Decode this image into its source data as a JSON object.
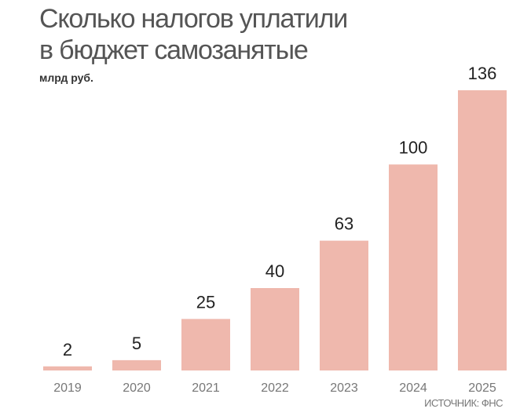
{
  "chart_data": {
    "type": "bar",
    "title": "Сколько налогов уплатили в бюджет самозанятые",
    "title_lines": [
      "Сколько налогов уплатили",
      "в бюджет самозанятые"
    ],
    "unit": "млрд руб.",
    "categories": [
      "2019",
      "2020",
      "2021",
      "2022",
      "2023",
      "2024",
      "2025"
    ],
    "values": [
      2,
      5,
      25,
      40,
      63,
      100,
      136
    ],
    "data_labels": [
      "2",
      "5",
      "25",
      "40",
      "63",
      "100",
      "136"
    ],
    "source": "ИСТОЧНИК: ФНС",
    "ylim": [
      0,
      136
    ],
    "grid": false,
    "bar_color": "#efb8ad"
  }
}
